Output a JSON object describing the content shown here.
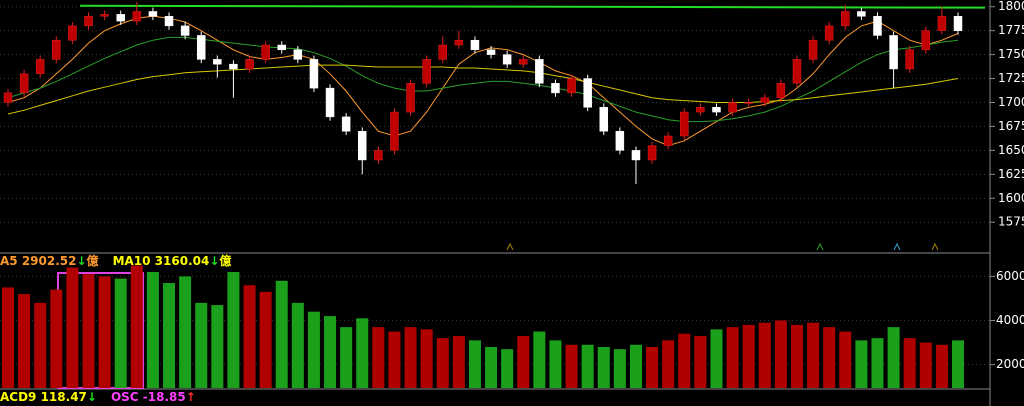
{
  "chart_data": {
    "type": "candlestick",
    "up_color": "#c00000",
    "down_color": "#ffffff",
    "vol_up_color": "#b00000",
    "vol_down_color": "#1aa01a",
    "ylim": [
      1546,
      1807
    ],
    "yticks": [
      1575,
      1600,
      1625,
      1650,
      1675,
      1700,
      1725,
      1750,
      1775,
      1800
    ],
    "grid": true,
    "ohlc": [
      [
        1700,
        1714,
        1696,
        1710
      ],
      [
        1710,
        1734,
        1706,
        1730
      ],
      [
        1730,
        1749,
        1726,
        1745
      ],
      [
        1745,
        1769,
        1741,
        1765
      ],
      [
        1765,
        1784,
        1761,
        1780
      ],
      [
        1780,
        1794,
        1776,
        1790
      ],
      [
        1790,
        1796,
        1786,
        1792
      ],
      [
        1792,
        1796,
        1781,
        1785
      ],
      [
        1785,
        1805,
        1781,
        1795
      ],
      [
        1795,
        1799,
        1786,
        1790
      ],
      [
        1790,
        1794,
        1776,
        1780
      ],
      [
        1780,
        1784,
        1766,
        1770
      ],
      [
        1770,
        1774,
        1741,
        1745
      ],
      [
        1745,
        1749,
        1726,
        1740
      ],
      [
        1740,
        1744,
        1705,
        1735
      ],
      [
        1735,
        1749,
        1731,
        1745
      ],
      [
        1745,
        1764,
        1741,
        1760
      ],
      [
        1760,
        1764,
        1751,
        1755
      ],
      [
        1755,
        1759,
        1741,
        1745
      ],
      [
        1745,
        1749,
        1711,
        1715
      ],
      [
        1715,
        1719,
        1681,
        1685
      ],
      [
        1685,
        1689,
        1666,
        1670
      ],
      [
        1670,
        1674,
        1625,
        1640
      ],
      [
        1640,
        1654,
        1636,
        1650
      ],
      [
        1650,
        1694,
        1646,
        1690
      ],
      [
        1690,
        1724,
        1686,
        1720
      ],
      [
        1720,
        1749,
        1716,
        1745
      ],
      [
        1745,
        1769,
        1741,
        1760
      ],
      [
        1760,
        1775,
        1756,
        1765
      ],
      [
        1765,
        1769,
        1751,
        1755
      ],
      [
        1755,
        1759,
        1746,
        1750
      ],
      [
        1750,
        1754,
        1736,
        1740
      ],
      [
        1740,
        1749,
        1736,
        1745
      ],
      [
        1745,
        1749,
        1716,
        1720
      ],
      [
        1720,
        1724,
        1706,
        1710
      ],
      [
        1710,
        1729,
        1706,
        1725
      ],
      [
        1725,
        1729,
        1691,
        1695
      ],
      [
        1695,
        1699,
        1666,
        1670
      ],
      [
        1670,
        1674,
        1646,
        1650
      ],
      [
        1650,
        1654,
        1615,
        1640
      ],
      [
        1640,
        1659,
        1636,
        1655
      ],
      [
        1655,
        1669,
        1651,
        1665
      ],
      [
        1665,
        1694,
        1661,
        1690
      ],
      [
        1690,
        1699,
        1686,
        1695
      ],
      [
        1695,
        1699,
        1686,
        1690
      ],
      [
        1690,
        1704,
        1686,
        1700
      ],
      [
        1700,
        1704,
        1696,
        1700
      ],
      [
        1700,
        1709,
        1696,
        1705
      ],
      [
        1705,
        1724,
        1701,
        1720
      ],
      [
        1720,
        1749,
        1716,
        1745
      ],
      [
        1745,
        1769,
        1741,
        1765
      ],
      [
        1765,
        1784,
        1761,
        1780
      ],
      [
        1780,
        1802,
        1776,
        1795
      ],
      [
        1795,
        1799,
        1786,
        1790
      ],
      [
        1790,
        1794,
        1766,
        1770
      ],
      [
        1770,
        1774,
        1715,
        1735
      ],
      [
        1735,
        1759,
        1731,
        1755
      ],
      [
        1755,
        1779,
        1751,
        1775
      ],
      [
        1775,
        1800,
        1771,
        1790
      ],
      [
        1790,
        1794,
        1771,
        1775
      ]
    ],
    "ma_lines": [
      {
        "color": "#ff9a2e",
        "values": [
          1700,
          1705,
          1715,
          1730,
          1745,
          1762,
          1775,
          1782,
          1788,
          1790,
          1788,
          1784,
          1775,
          1765,
          1755,
          1748,
          1745,
          1747,
          1750,
          1745,
          1730,
          1712,
          1690,
          1670,
          1665,
          1670,
          1690,
          1715,
          1740,
          1752,
          1757,
          1755,
          1750,
          1742,
          1733,
          1728,
          1720,
          1705,
          1690,
          1675,
          1662,
          1655,
          1660,
          1670,
          1680,
          1690,
          1695,
          1698,
          1703,
          1715,
          1730,
          1750,
          1768,
          1780,
          1785,
          1775,
          1765,
          1760,
          1765,
          1772
        ]
      },
      {
        "color": "#2aa02a",
        "values": [
          1705,
          1710,
          1715,
          1722,
          1730,
          1738,
          1746,
          1753,
          1760,
          1765,
          1768,
          1768,
          1766,
          1764,
          1762,
          1760,
          1758,
          1757,
          1756,
          1752,
          1746,
          1738,
          1728,
          1720,
          1715,
          1712,
          1712,
          1715,
          1718,
          1720,
          1722,
          1722,
          1720,
          1718,
          1715,
          1712,
          1708,
          1702,
          1696,
          1690,
          1686,
          1682,
          1680,
          1680,
          1681,
          1683,
          1686,
          1690,
          1696,
          1704,
          1712,
          1722,
          1732,
          1742,
          1750,
          1755,
          1757,
          1760,
          1763,
          1765
        ]
      },
      {
        "color": "#d8c800",
        "values": [
          1688,
          1692,
          1697,
          1702,
          1707,
          1712,
          1716,
          1720,
          1724,
          1727,
          1729,
          1731,
          1732,
          1733,
          1734,
          1735,
          1736,
          1737,
          1738,
          1739,
          1739,
          1739,
          1738,
          1737,
          1737,
          1737,
          1737,
          1737,
          1736,
          1736,
          1735,
          1734,
          1733,
          1731,
          1728,
          1725,
          1721,
          1717,
          1713,
          1709,
          1705,
          1703,
          1702,
          1701,
          1700,
          1700,
          1700,
          1701,
          1702,
          1703,
          1705,
          1707,
          1709,
          1711,
          1713,
          1715,
          1717,
          1719,
          1722,
          1725
        ]
      }
    ],
    "trend_line": {
      "color": "#22dd22",
      "values": [
        1801,
        1799
      ]
    },
    "volume": {
      "ylim": [
        940,
        6970
      ],
      "yticks": [
        2000,
        4000,
        6000
      ],
      "values": [
        5500,
        5200,
        4800,
        5400,
        6400,
        6100,
        6000,
        5900,
        6500,
        6200,
        5700,
        6000,
        4800,
        4700,
        6200,
        5600,
        5300,
        5800,
        4800,
        4400,
        4200,
        3700,
        4100,
        3700,
        3500,
        3700,
        3600,
        3200,
        3300,
        3100,
        2800,
        2700,
        3300,
        3500,
        3100,
        2900,
        2900,
        2800,
        2700,
        2900,
        2800,
        3100,
        3400,
        3300,
        3600,
        3700,
        3800,
        3900,
        4000,
        3800,
        3900,
        3700,
        3500,
        3100,
        3200,
        3700,
        3200,
        3000,
        2900,
        3100
      ]
    },
    "legend_top": [
      {
        "text": "A5 2902.52",
        "arrow": "↓",
        "unit": "億",
        "color": "#ff9a2e"
      },
      {
        "text": "MA10 3160.04",
        "arrow": "↓",
        "unit": "億",
        "color": "#ffff00"
      }
    ],
    "legend_bottom": [
      {
        "text": "ACD9 118.47",
        "arrow": "↓",
        "color": "#ffff00"
      },
      {
        "text": "OSC -18.85",
        "arrow": "↑",
        "color": "#ff40ff"
      }
    ]
  }
}
